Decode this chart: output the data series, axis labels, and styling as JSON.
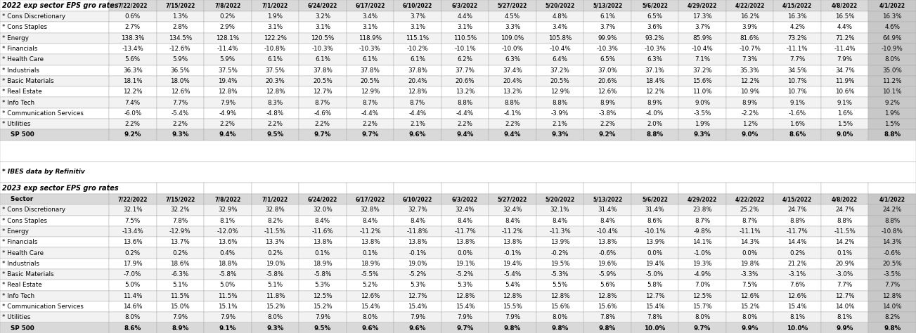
{
  "title_2022": "2022 exp sector EPS gro rates",
  "title_2023": "2023 exp sector EPS gro rates",
  "footnote": "* IBES data by Refinitiv",
  "columns": [
    "7/22/2022",
    "7/15/2022",
    "7/8/2022",
    "7/1/2022",
    "6/24/2022",
    "6/17/2022",
    "6/10/2022",
    "6/3/2022",
    "5/27/2022",
    "5/20/2022",
    "5/13/2022",
    "5/6/2022",
    "4/29/2022",
    "4/22/2022",
    "4/15/2022",
    "4/8/2022",
    "4/1/2022"
  ],
  "sectors": [
    "* Cons Discretionary",
    "* Cons Staples",
    "* Energy",
    "* Financials",
    "* Health Care",
    "* Industrials",
    "* Basic Materials",
    "* Real Estate",
    "* Info Tech",
    "* Communication Services",
    "* Utilities",
    "SP 500"
  ],
  "data_2022": {
    "* Cons Discretionary": [
      "0.6%",
      "1.3%",
      "0.2%",
      "1.9%",
      "3.2%",
      "3.4%",
      "3.7%",
      "4.4%",
      "4.5%",
      "4.8%",
      "6.1%",
      "6.5%",
      "17.3%",
      "16.2%",
      "16.3%",
      "16.5%",
      "16.3%"
    ],
    "* Cons Staples": [
      "2.7%",
      "2.8%",
      "2.9%",
      "3.1%",
      "3.1%",
      "3.1%",
      "3.1%",
      "3.1%",
      "3.3%",
      "3.4%",
      "3.7%",
      "3.6%",
      "3.7%",
      "3.9%",
      "4.2%",
      "4.4%",
      "4.6%"
    ],
    "* Energy": [
      "138.3%",
      "134.5%",
      "128.1%",
      "122.2%",
      "120.5%",
      "118.9%",
      "115.1%",
      "110.5%",
      "109.0%",
      "105.8%",
      "99.9%",
      "93.2%",
      "85.9%",
      "81.6%",
      "73.2%",
      "71.2%",
      "64.9%"
    ],
    "* Financials": [
      "-13.4%",
      "-12.6%",
      "-11.4%",
      "-10.8%",
      "-10.3%",
      "-10.3%",
      "-10.2%",
      "-10.1%",
      "-10.0%",
      "-10.4%",
      "-10.3%",
      "-10.3%",
      "-10.4%",
      "-10.7%",
      "-11.1%",
      "-11.4%",
      "-10.9%"
    ],
    "* Health Care": [
      "5.6%",
      "5.9%",
      "5.9%",
      "6.1%",
      "6.1%",
      "6.1%",
      "6.1%",
      "6.2%",
      "6.3%",
      "6.4%",
      "6.5%",
      "6.3%",
      "7.1%",
      "7.3%",
      "7.7%",
      "7.9%",
      "8.0%"
    ],
    "* Industrials": [
      "36.3%",
      "36.5%",
      "37.5%",
      "37.5%",
      "37.8%",
      "37.8%",
      "37.8%",
      "37.7%",
      "37.4%",
      "37.2%",
      "37.0%",
      "37.1%",
      "37.2%",
      "35.3%",
      "34.5%",
      "34.7%",
      "35.0%"
    ],
    "* Basic Materials": [
      "18.1%",
      "18.0%",
      "19.4%",
      "20.3%",
      "20.5%",
      "20.5%",
      "20.4%",
      "20.6%",
      "20.4%",
      "20.5%",
      "20.6%",
      "18.4%",
      "15.6%",
      "12.2%",
      "10.7%",
      "11.9%",
      "11.2%"
    ],
    "* Real Estate": [
      "12.2%",
      "12.6%",
      "12.8%",
      "12.8%",
      "12.7%",
      "12.9%",
      "12.8%",
      "13.2%",
      "13.2%",
      "12.9%",
      "12.6%",
      "12.2%",
      "11.0%",
      "10.9%",
      "10.7%",
      "10.6%",
      "10.1%"
    ],
    "* Info Tech": [
      "7.4%",
      "7.7%",
      "7.9%",
      "8.3%",
      "8.7%",
      "8.7%",
      "8.7%",
      "8.8%",
      "8.8%",
      "8.8%",
      "8.9%",
      "8.9%",
      "9.0%",
      "8.9%",
      "9.1%",
      "9.1%",
      "9.2%"
    ],
    "* Communication Services": [
      "-6.0%",
      "-5.4%",
      "-4.9%",
      "-4.8%",
      "-4.6%",
      "-4.4%",
      "-4.4%",
      "-4.4%",
      "-4.1%",
      "-3.9%",
      "-3.8%",
      "-4.0%",
      "-3.5%",
      "-2.2%",
      "-1.6%",
      "1.6%",
      "1.9%"
    ],
    "* Utilities": [
      "2.2%",
      "2.2%",
      "2.2%",
      "2.2%",
      "2.2%",
      "2.2%",
      "2.1%",
      "2.2%",
      "2.2%",
      "2.1%",
      "2.2%",
      "2.0%",
      "1.9%",
      "1.2%",
      "1.6%",
      "1.5%",
      "1.5%"
    ],
    "SP 500": [
      "9.2%",
      "9.3%",
      "9.4%",
      "9.5%",
      "9.7%",
      "9.7%",
      "9.6%",
      "9.4%",
      "9.4%",
      "9.3%",
      "9.2%",
      "8.8%",
      "9.3%",
      "9.0%",
      "8.6%",
      "9.0%",
      "8.8%"
    ]
  },
  "data_2023": {
    "* Cons Discretionary": [
      "32.1%",
      "32.2%",
      "32.9%",
      "32.8%",
      "32.0%",
      "32.8%",
      "32.7%",
      "32.4%",
      "32.4%",
      "32.1%",
      "31.4%",
      "31.4%",
      "23.8%",
      "25.2%",
      "24.7%",
      "24.7%",
      "24.2%"
    ],
    "* Cons Staples": [
      "7.5%",
      "7.8%",
      "8.1%",
      "8.2%",
      "8.4%",
      "8.4%",
      "8.4%",
      "8.4%",
      "8.4%",
      "8.4%",
      "8.4%",
      "8.6%",
      "8.7%",
      "8.7%",
      "8.8%",
      "8.8%",
      "8.8%"
    ],
    "* Energy": [
      "-13.4%",
      "-12.9%",
      "-12.0%",
      "-11.5%",
      "-11.6%",
      "-11.2%",
      "-11.8%",
      "-11.7%",
      "-11.2%",
      "-11.3%",
      "-10.4%",
      "-10.1%",
      "-9.8%",
      "-11.1%",
      "-11.7%",
      "-11.5%",
      "-10.8%"
    ],
    "* Financials": [
      "13.6%",
      "13.7%",
      "13.6%",
      "13.3%",
      "13.8%",
      "13.8%",
      "13.8%",
      "13.8%",
      "13.8%",
      "13.9%",
      "13.8%",
      "13.9%",
      "14.1%",
      "14.3%",
      "14.4%",
      "14.2%",
      "14.3%"
    ],
    "* Health Care": [
      "0.2%",
      "0.2%",
      "0.4%",
      "0.2%",
      "0.1%",
      "0.1%",
      "-0.1%",
      "0.0%",
      "-0.1%",
      "-0.2%",
      "-0.6%",
      "0.0%",
      "-1.0%",
      "0.0%",
      "0.2%",
      "0.1%",
      "-0.6%"
    ],
    "* Industrials": [
      "17.9%",
      "18.6%",
      "18.8%",
      "19.0%",
      "18.9%",
      "18.9%",
      "19.0%",
      "19.1%",
      "19.4%",
      "19.5%",
      "19.6%",
      "19.4%",
      "19.3%",
      "19.8%",
      "21.2%",
      "20.9%",
      "20.5%"
    ],
    "* Basic Materials": [
      "-7.0%",
      "-6.3%",
      "-5.8%",
      "-5.8%",
      "-5.8%",
      "-5.5%",
      "-5.2%",
      "-5.2%",
      "-5.4%",
      "-5.3%",
      "-5.9%",
      "-5.0%",
      "-4.9%",
      "-3.3%",
      "-3.1%",
      "-3.0%",
      "-3.5%"
    ],
    "* Real Estate": [
      "5.0%",
      "5.1%",
      "5.0%",
      "5.1%",
      "5.3%",
      "5.2%",
      "5.3%",
      "5.3%",
      "5.4%",
      "5.5%",
      "5.6%",
      "5.8%",
      "7.0%",
      "7.5%",
      "7.6%",
      "7.7%",
      "7.7%"
    ],
    "* Info Tech": [
      "11.4%",
      "11.5%",
      "11.5%",
      "11.8%",
      "12.5%",
      "12.6%",
      "12.7%",
      "12.8%",
      "12.8%",
      "12.8%",
      "12.8%",
      "12.7%",
      "12.5%",
      "12.6%",
      "12.6%",
      "12.7%",
      "12.8%"
    ],
    "* Communication Services": [
      "14.6%",
      "15.0%",
      "15.1%",
      "15.2%",
      "15.2%",
      "15.4%",
      "15.4%",
      "15.4%",
      "15.5%",
      "15.6%",
      "15.6%",
      "15.4%",
      "15.7%",
      "15.2%",
      "15.4%",
      "14.0%",
      "14.0%"
    ],
    "* Utilities": [
      "8.0%",
      "7.9%",
      "7.9%",
      "8.0%",
      "7.9%",
      "8.0%",
      "7.9%",
      "7.9%",
      "7.9%",
      "8.0%",
      "7.8%",
      "7.8%",
      "8.0%",
      "8.0%",
      "8.1%",
      "8.1%",
      "8.2%"
    ],
    "SP 500": [
      "8.6%",
      "8.9%",
      "9.1%",
      "9.3%",
      "9.5%",
      "9.6%",
      "9.6%",
      "9.7%",
      "9.8%",
      "9.8%",
      "9.8%",
      "10.0%",
      "9.7%",
      "9.9%",
      "10.0%",
      "9.9%",
      "9.8%"
    ]
  },
  "bg_header": "#D9D9D9",
  "bg_alt": "#F2F2F2",
  "bg_white": "#FFFFFF",
  "bg_sp500": "#D9D9D9",
  "bg_last_col": "#C8C8C8",
  "bg_title": "#FFFFFF"
}
